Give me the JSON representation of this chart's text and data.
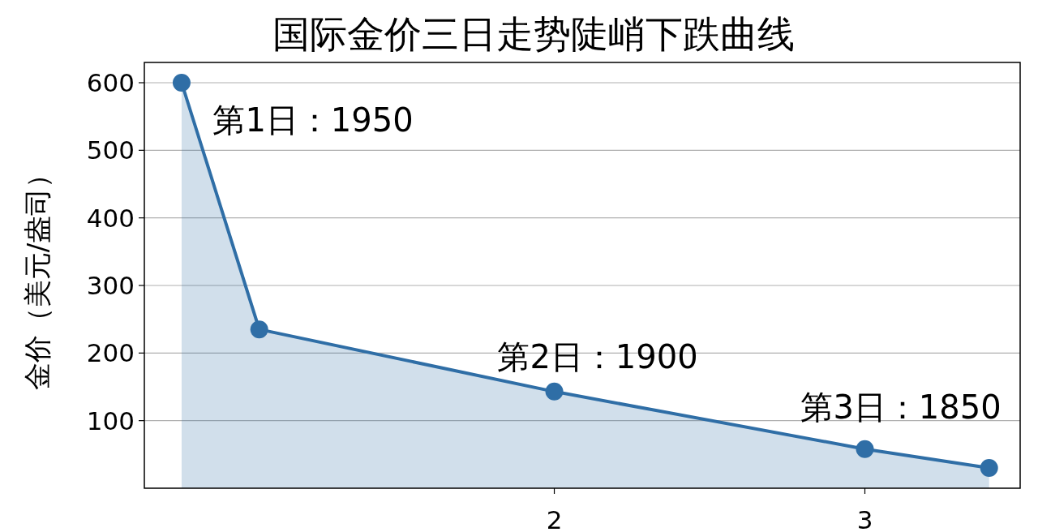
{
  "chart_data": {
    "type": "area",
    "title": "国际金价三日走势陡峭下跌曲线",
    "ylabel": "金价（美元/盎司）",
    "x": [
      0.8,
      1.05,
      2,
      3,
      3.4
    ],
    "series": [
      {
        "color": "#2f6ea6",
        "values": [
          600,
          235,
          143,
          58,
          30
        ]
      }
    ],
    "xlim": [
      0.68,
      3.5
    ],
    "xticks": [
      2,
      3
    ],
    "ylim": [
      0,
      630
    ],
    "yticks": [
      100,
      200,
      300,
      400,
      500,
      600
    ],
    "grid": "y",
    "marker": "circle",
    "line_style": "solid",
    "annotations": [
      "第1日：1950",
      "第2日：1900",
      "第3日：1850"
    ]
  }
}
